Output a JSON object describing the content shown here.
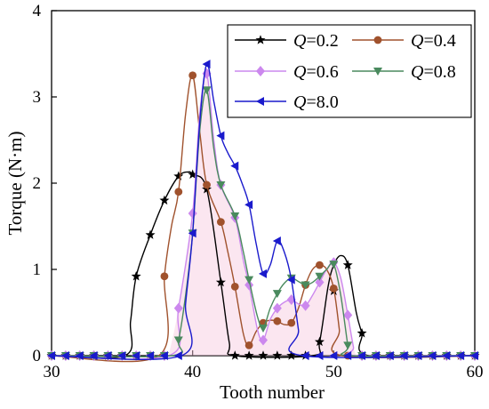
{
  "chart_data": {
    "type": "line",
    "title": "",
    "xlabel": "Tooth number",
    "ylabel": "Torque (N·m)",
    "xlim": [
      30,
      60
    ],
    "ylim": [
      0,
      4
    ],
    "xticks": [
      30,
      40,
      50,
      60
    ],
    "yticks": [
      0,
      1,
      2,
      3,
      4
    ],
    "grid": false,
    "legend_placement": "top-right",
    "series": [
      {
        "name": "Q=0.2",
        "label_var": "Q",
        "label_val": "=0.2",
        "color": "#000000",
        "marker": "star",
        "x": [
          30,
          31,
          32,
          33,
          34,
          35,
          36,
          37,
          38,
          39,
          40,
          41,
          42,
          43,
          44,
          45,
          46,
          47,
          48,
          49,
          50,
          51,
          52,
          53,
          54,
          55,
          56,
          57,
          58,
          59,
          60
        ],
        "y": [
          0,
          0,
          0,
          0,
          0,
          0,
          0.92,
          1.4,
          1.8,
          2.08,
          2.1,
          1.93,
          0.85,
          0,
          0,
          0,
          0,
          0,
          0,
          0.16,
          0.75,
          1.05,
          0.26,
          0,
          0,
          0,
          0,
          0,
          0,
          0,
          0
        ],
        "curve": [
          [
            35.2,
            0
          ],
          [
            35.6,
            0.4
          ],
          [
            36,
            0.92
          ],
          [
            37,
            1.4
          ],
          [
            38,
            1.8
          ],
          [
            39,
            2.08
          ],
          [
            39.7,
            2.13
          ],
          [
            40,
            2.1
          ],
          [
            41,
            1.93
          ],
          [
            42,
            0.85
          ],
          [
            42.6,
            0.15
          ],
          [
            43,
            0
          ],
          [
            48.5,
            0
          ],
          [
            49,
            0.16
          ],
          [
            49.6,
            0.8
          ],
          [
            50,
            1.05
          ],
          [
            50.5,
            1.16
          ],
          [
            51,
            1.05
          ],
          [
            51.6,
            0.5
          ],
          [
            52,
            0.26
          ],
          [
            52.5,
            0
          ]
        ]
      },
      {
        "name": "Q=0.4",
        "label_var": "Q",
        "label_val": "=0.4",
        "color": "#a0522d",
        "marker": "circle",
        "x": [
          30,
          31,
          32,
          33,
          34,
          35,
          36,
          37,
          38,
          39,
          40,
          41,
          42,
          43,
          44,
          45,
          46,
          47,
          48,
          49,
          50,
          51,
          52,
          53,
          54,
          55,
          56,
          57,
          58,
          59,
          60
        ],
        "y": [
          0,
          0,
          0,
          0,
          0,
          0,
          0,
          0,
          0.92,
          1.9,
          3.25,
          1.98,
          1.55,
          0.8,
          0.12,
          0.38,
          0.4,
          0.38,
          0.82,
          1.05,
          0.78,
          0,
          0,
          0,
          0,
          0,
          0,
          0,
          0,
          0,
          0
        ],
        "curve": [
          [
            37.6,
            0
          ],
          [
            38,
            0.92
          ],
          [
            38.5,
            1.5
          ],
          [
            39,
            1.9
          ],
          [
            39.5,
            2.8
          ],
          [
            40,
            3.25
          ],
          [
            40.5,
            2.6
          ],
          [
            41,
            1.98
          ],
          [
            42,
            1.55
          ],
          [
            42.5,
            1.2
          ],
          [
            43,
            0.8
          ],
          [
            43.6,
            0.25
          ],
          [
            44,
            0.12
          ],
          [
            44.5,
            0.28
          ],
          [
            45,
            0.38
          ],
          [
            45.5,
            0.41
          ],
          [
            46,
            0.4
          ],
          [
            46.5,
            0.36
          ],
          [
            47,
            0.38
          ],
          [
            47.5,
            0.55
          ],
          [
            48,
            0.82
          ],
          [
            48.5,
            1.0
          ],
          [
            49,
            1.05
          ],
          [
            49.5,
            1.0
          ],
          [
            50,
            0.78
          ],
          [
            50.4,
            0.3
          ],
          [
            50.6,
            0
          ]
        ]
      },
      {
        "name": "Q=0.6",
        "label_var": "Q",
        "label_val": "=0.6",
        "color": "#cc88ee",
        "marker": "diamond",
        "x": [
          30,
          31,
          32,
          33,
          34,
          35,
          36,
          37,
          38,
          39,
          40,
          41,
          42,
          43,
          44,
          45,
          46,
          47,
          48,
          49,
          50,
          51,
          52,
          53,
          54,
          55,
          56,
          57,
          58,
          59,
          60
        ],
        "y": [
          0,
          0,
          0,
          0,
          0,
          0,
          0,
          0,
          0,
          0.55,
          1.65,
          3.27,
          1.98,
          1.6,
          0.82,
          0.18,
          0.55,
          0.65,
          0.58,
          0.85,
          1.08,
          0.47,
          0,
          0,
          0,
          0,
          0,
          0,
          0,
          0,
          0
        ],
        "curve": [
          [
            38.3,
            0
          ],
          [
            39,
            0.55
          ],
          [
            40,
            1.65
          ],
          [
            40.5,
            2.8
          ],
          [
            41,
            3.27
          ],
          [
            41.5,
            2.5
          ],
          [
            42,
            1.98
          ],
          [
            43,
            1.6
          ],
          [
            43.6,
            1.1
          ],
          [
            44,
            0.82
          ],
          [
            44.6,
            0.3
          ],
          [
            45,
            0.18
          ],
          [
            45.5,
            0.42
          ],
          [
            46,
            0.55
          ],
          [
            46.5,
            0.62
          ],
          [
            47,
            0.65
          ],
          [
            47.5,
            0.6
          ],
          [
            48,
            0.58
          ],
          [
            48.5,
            0.7
          ],
          [
            49,
            0.85
          ],
          [
            49.5,
            1.0
          ],
          [
            50,
            1.08
          ],
          [
            50.5,
            0.9
          ],
          [
            51,
            0.47
          ],
          [
            51.4,
            0.1
          ],
          [
            51.6,
            0
          ]
        ]
      },
      {
        "name": "Q=0.8",
        "label_var": "Q",
        "label_val": "=0.8",
        "color": "#4a8a5e",
        "marker": "triangle-down",
        "x": [
          30,
          31,
          32,
          33,
          34,
          35,
          36,
          37,
          38,
          39,
          40,
          41,
          42,
          43,
          44,
          45,
          46,
          47,
          48,
          49,
          50,
          51,
          52,
          53,
          54,
          55,
          56,
          57,
          58,
          59,
          60
        ],
        "y": [
          0,
          0,
          0,
          0,
          0,
          0,
          0,
          0,
          0,
          0.18,
          1.42,
          3.08,
          1.98,
          1.62,
          0.88,
          0.32,
          0.72,
          0.9,
          0.82,
          0.92,
          1.06,
          0.12,
          0,
          0,
          0,
          0,
          0,
          0,
          0,
          0,
          0
        ],
        "curve": [
          [
            38.5,
            0
          ],
          [
            39,
            0.18
          ],
          [
            39.5,
            0.7
          ],
          [
            40,
            1.42
          ],
          [
            40.5,
            2.6
          ],
          [
            41,
            3.08
          ],
          [
            41.5,
            2.4
          ],
          [
            42,
            1.98
          ],
          [
            43,
            1.62
          ],
          [
            43.6,
            1.2
          ],
          [
            44,
            0.88
          ],
          [
            44.6,
            0.45
          ],
          [
            45,
            0.32
          ],
          [
            45.5,
            0.55
          ],
          [
            46,
            0.72
          ],
          [
            46.5,
            0.84
          ],
          [
            47,
            0.9
          ],
          [
            47.5,
            0.86
          ],
          [
            48,
            0.82
          ],
          [
            48.5,
            0.85
          ],
          [
            49,
            0.92
          ],
          [
            49.5,
            1.0
          ],
          [
            50,
            1.06
          ],
          [
            50.5,
            0.7
          ],
          [
            51,
            0.12
          ],
          [
            51.2,
            0
          ]
        ]
      },
      {
        "name": "Q=8.0",
        "label_var": "Q",
        "label_val": "=8.0",
        "color": "#1a1acc",
        "marker": "triangle-left",
        "x": [
          30,
          31,
          32,
          33,
          34,
          35,
          36,
          37,
          38,
          39,
          40,
          41,
          42,
          43,
          44,
          45,
          46,
          47,
          48,
          49,
          50,
          51,
          52,
          53,
          54,
          55,
          56,
          57,
          58,
          59,
          60
        ],
        "y": [
          0,
          0,
          0,
          0,
          0,
          0,
          0,
          0,
          0,
          0,
          1.42,
          3.38,
          2.55,
          2.2,
          1.75,
          0.95,
          1.33,
          0.88,
          0,
          0,
          0,
          0,
          0,
          0,
          0,
          0,
          0,
          0,
          0,
          0,
          0
        ],
        "curve": [
          [
            39.2,
            0
          ],
          [
            39.5,
            0.6
          ],
          [
            40,
            1.42
          ],
          [
            40.5,
            2.7
          ],
          [
            41,
            3.38
          ],
          [
            41.5,
            2.95
          ],
          [
            42,
            2.55
          ],
          [
            42.5,
            2.35
          ],
          [
            43,
            2.2
          ],
          [
            43.5,
            2.0
          ],
          [
            44,
            1.75
          ],
          [
            44.5,
            1.3
          ],
          [
            45,
            0.95
          ],
          [
            45.5,
            1.05
          ],
          [
            46,
            1.33
          ],
          [
            46.5,
            1.2
          ],
          [
            47,
            0.88
          ],
          [
            47.5,
            0.3
          ],
          [
            47.8,
            0
          ]
        ]
      }
    ]
  }
}
